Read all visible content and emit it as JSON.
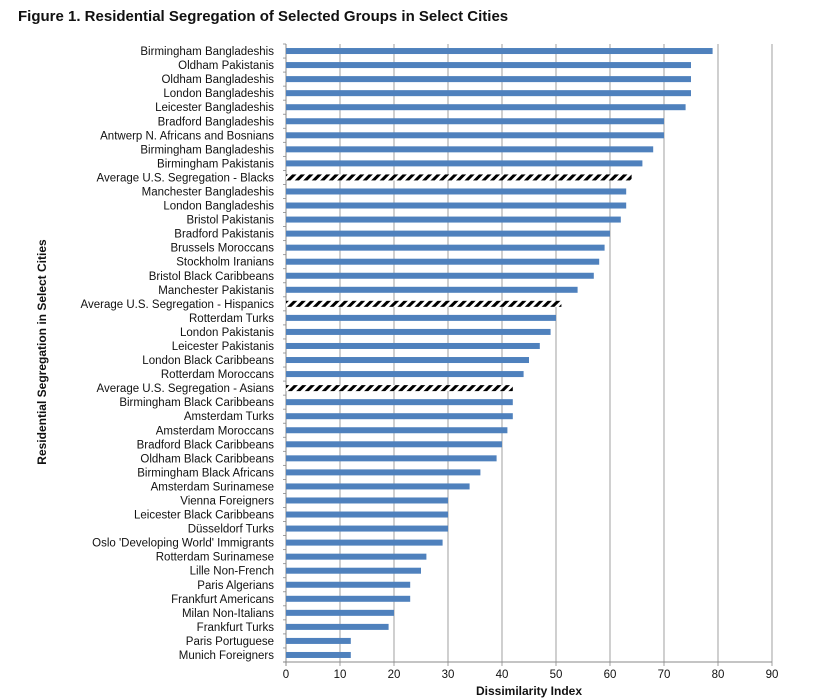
{
  "figure_title": "Figure 1. Residential Segregation of Selected Groups in Select Cities",
  "colors": {
    "bar": "#4F81BD",
    "grid": "#888888",
    "hatch": "#000000",
    "text": "#111111"
  },
  "chart_data": {
    "type": "bar",
    "orientation": "horizontal",
    "title": "Figure 1. Residential Segregation of Selected Groups in Select Cities",
    "xlabel": "Dissimilarity Index",
    "ylabel": "Residential Segregation in Select Cities",
    "xlim": [
      0,
      90
    ],
    "xticks": [
      0,
      10,
      20,
      30,
      40,
      50,
      60,
      70,
      80,
      90
    ],
    "grid": true,
    "legend": "none",
    "categories": [
      "Birmingham Bangladeshis",
      "Oldham Pakistanis",
      "Oldham Bangladeshis",
      "London Bangladeshis",
      "Leicester Bangladeshis",
      "Bradford Bangladeshis",
      "Antwerp N. Africans and Bosnians",
      "Birmingham Bangladeshis",
      "Birmingham Pakistanis",
      "Average U.S. Segregation - Blacks",
      "Manchester Bangladeshis",
      "London Bangladeshis",
      "Bristol Pakistanis",
      "Bradford Pakistanis",
      "Brussels Moroccans",
      "Stockholm Iranians",
      "Bristol Black Caribbeans",
      "Manchester Pakistanis",
      "Average U.S. Segregation - Hispanics",
      "Rotterdam Turks",
      "London Pakistanis",
      "Leicester Pakistanis",
      "London Black Caribbeans",
      "Rotterdam Moroccans",
      "Average U.S. Segregation - Asians",
      "Birmingham Black Caribbeans",
      "Amsterdam Turks",
      "Amsterdam Moroccans",
      "Bradford Black Caribbeans",
      "Oldham Black Caribbeans",
      "Birmingham Black Africans",
      "Amsterdam Surinamese",
      "Vienna Foreigners",
      "Leicester Black Caribbeans",
      "Düsseldorf Turks",
      "Oslo 'Developing World' Immigrants",
      "Rotterdam Surinamese",
      "Lille Non-French",
      "Paris Algerians",
      "Frankfurt Americans",
      "Milan Non-Italians",
      "Frankfurt Turks",
      "Paris Portuguese",
      "Munich Foreigners"
    ],
    "values": [
      79,
      75,
      75,
      75,
      74,
      70,
      70,
      68,
      66,
      64,
      63,
      63,
      62,
      60,
      59,
      58,
      57,
      54,
      51,
      50,
      49,
      47,
      45,
      44,
      42,
      42,
      42,
      41,
      40,
      39,
      36,
      34,
      30,
      30,
      30,
      29,
      26,
      25,
      23,
      23,
      20,
      19,
      12,
      12
    ],
    "hatched": [
      false,
      false,
      false,
      false,
      false,
      false,
      false,
      false,
      false,
      true,
      false,
      false,
      false,
      false,
      false,
      false,
      false,
      false,
      true,
      false,
      false,
      false,
      false,
      false,
      true,
      false,
      false,
      false,
      false,
      false,
      false,
      false,
      false,
      false,
      false,
      false,
      false,
      false,
      false,
      false,
      false,
      false,
      false,
      false
    ]
  }
}
